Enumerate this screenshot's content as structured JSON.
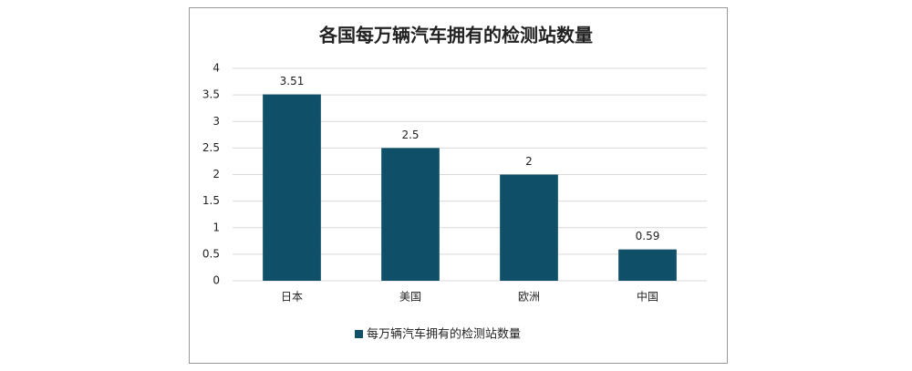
{
  "chart_data": {
    "type": "bar",
    "title": "各国每万辆汽车拥有的检测站数量",
    "categories": [
      "日本",
      "美国",
      "欧洲",
      "中国"
    ],
    "series": [
      {
        "name": "每万辆汽车拥有的检测站数量",
        "color": "#0f5068",
        "values": [
          3.51,
          2.5,
          2,
          0.59
        ]
      }
    ],
    "ylim": [
      0,
      4
    ],
    "yticks": [
      0,
      0.5,
      1,
      1.5,
      2,
      2.5,
      3,
      3.5,
      4
    ],
    "grid": true,
    "legend": "bottom"
  }
}
